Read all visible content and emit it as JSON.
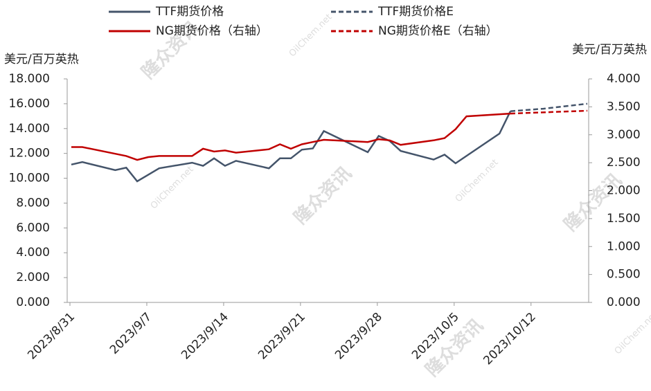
{
  "chart_data": {
    "type": "line",
    "y_label": "美元/百万英热",
    "y2_label": "美元/百万英热",
    "watermark": [
      "隆众资讯",
      "OilChem.net"
    ],
    "xlim": [
      "2023/8/31",
      "2023/10/17"
    ],
    "xticks": [
      "2023/8/31",
      "2023/9/7",
      "2023/9/14",
      "2023/9/21",
      "2023/9/28",
      "2023/10/5",
      "2023/10/12"
    ],
    "ylim": [
      0,
      18
    ],
    "yticks": [
      {
        "value": 0,
        "label": "0.000"
      },
      {
        "value": 2,
        "label": "2.000"
      },
      {
        "value": 4,
        "label": "4.000"
      },
      {
        "value": 6,
        "label": "6.000"
      },
      {
        "value": 8,
        "label": "8.000"
      },
      {
        "value": 10,
        "label": "10.000"
      },
      {
        "value": 12,
        "label": "12.000"
      },
      {
        "value": 14,
        "label": "14.000"
      },
      {
        "value": 16,
        "label": "16.000"
      },
      {
        "value": 18,
        "label": "18.000"
      }
    ],
    "y2lim": [
      0,
      4
    ],
    "y2ticks": [
      {
        "value": 0,
        "label": "0.000"
      },
      {
        "value": 0.5,
        "label": "0.500"
      },
      {
        "value": 1,
        "label": "1.000"
      },
      {
        "value": 1.5,
        "label": "1.500"
      },
      {
        "value": 2,
        "label": "2.000"
      },
      {
        "value": 2.5,
        "label": "2.500"
      },
      {
        "value": 3,
        "label": "3.000"
      },
      {
        "value": 3.5,
        "label": "3.500"
      },
      {
        "value": 4,
        "label": "4.000"
      }
    ],
    "grid": false,
    "legend": "top",
    "series": [
      {
        "name": "TTF期货价格",
        "color": "#44546a",
        "dashed": false,
        "x": [
          "2023/8/31",
          "2023/9/1",
          "2023/9/4",
          "2023/9/5",
          "2023/9/6",
          "2023/9/8",
          "2023/9/11",
          "2023/9/12",
          "2023/9/13",
          "2023/9/14",
          "2023/9/15",
          "2023/9/18",
          "2023/9/19",
          "2023/9/20",
          "2023/9/21",
          "2023/9/22",
          "2023/9/23",
          "2023/9/27",
          "2023/9/28",
          "2023/9/29",
          "2023/9/30",
          "2023/10/3",
          "2023/10/4",
          "2023/10/5",
          "2023/10/9",
          "2023/10/10"
        ],
        "values": [
          11.1,
          11.3,
          10.65,
          10.85,
          9.75,
          10.8,
          11.25,
          11.0,
          11.6,
          11.0,
          11.4,
          10.8,
          11.6,
          11.6,
          12.3,
          12.4,
          13.8,
          12.1,
          13.4,
          13.0,
          12.2,
          11.5,
          11.9,
          11.2,
          13.6,
          15.4
        ]
      },
      {
        "name": "TTF期货价格E",
        "color": "#44546a",
        "dashed": true,
        "x": [
          "2023/10/10",
          "2023/10/13",
          "2023/10/15",
          "2023/10/17"
        ],
        "values": [
          15.4,
          15.6,
          15.8,
          16.0
        ]
      },
      {
        "name": "NG期货价格（右轴）",
        "color": "#c00000",
        "dashed": false,
        "axis": "y2",
        "x": [
          "2023/8/31",
          "2023/9/1",
          "2023/9/4",
          "2023/9/5",
          "2023/9/6",
          "2023/9/7",
          "2023/9/8",
          "2023/9/11",
          "2023/9/12",
          "2023/9/13",
          "2023/9/14",
          "2023/9/15",
          "2023/9/18",
          "2023/9/19",
          "2023/9/20",
          "2023/9/21",
          "2023/9/22",
          "2023/9/23",
          "2023/9/27",
          "2023/9/28",
          "2023/9/29",
          "2023/9/30",
          "2023/10/3",
          "2023/10/4",
          "2023/10/5",
          "2023/10/6",
          "2023/10/10"
        ],
        "values": [
          2.78,
          2.78,
          2.66,
          2.62,
          2.55,
          2.6,
          2.62,
          2.62,
          2.75,
          2.7,
          2.72,
          2.68,
          2.74,
          2.83,
          2.75,
          2.83,
          2.87,
          2.91,
          2.87,
          2.92,
          2.9,
          2.82,
          2.9,
          2.94,
          3.1,
          3.33,
          3.38
        ]
      },
      {
        "name": "NG期货价格E（右轴）",
        "color": "#c00000",
        "dashed": true,
        "axis": "y2",
        "x": [
          "2023/10/10",
          "2023/10/17"
        ],
        "values": [
          3.38,
          3.43
        ]
      }
    ]
  }
}
